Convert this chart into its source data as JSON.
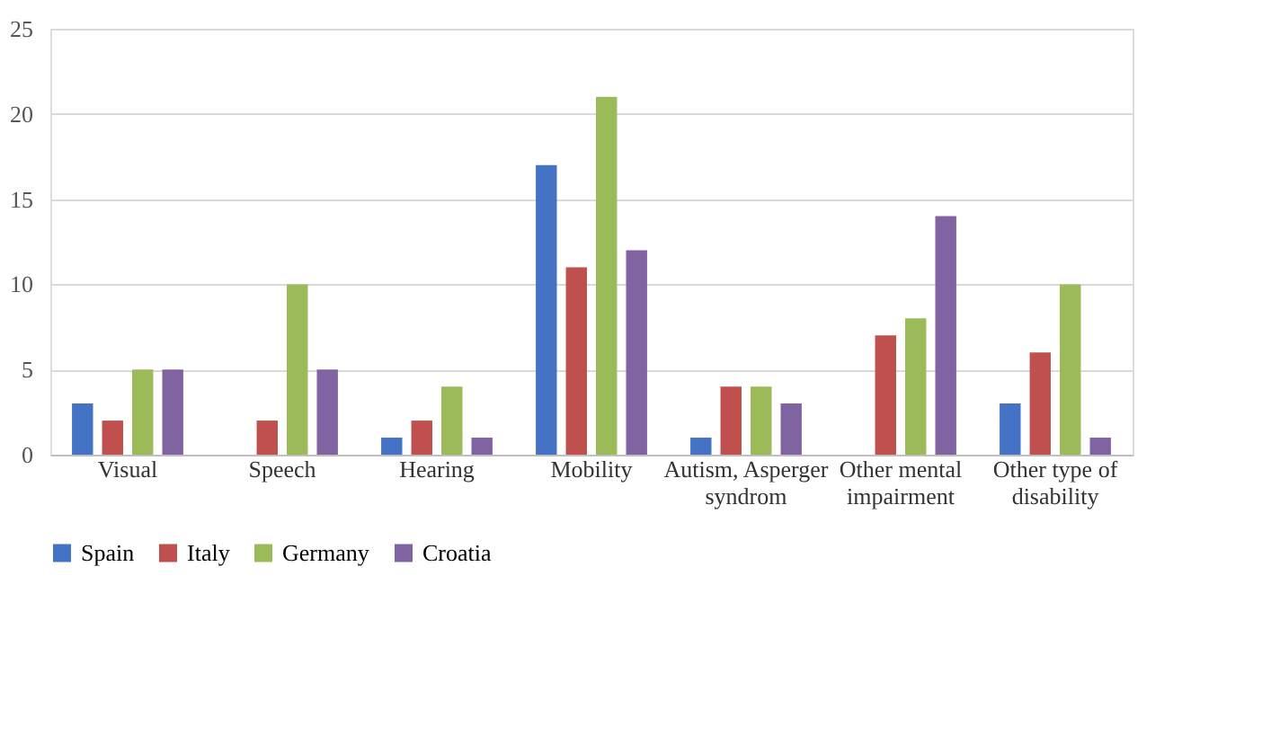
{
  "chart_data": {
    "type": "bar",
    "categories": [
      "Visual",
      "Speech",
      "Hearing",
      "Mobility",
      "Autism, Asperger syndrom",
      "Other mental impairment",
      "Other type of disability"
    ],
    "series": [
      {
        "name": "Spain",
        "color": "#4472c4",
        "values": [
          3,
          0,
          1,
          17,
          1,
          0,
          3
        ]
      },
      {
        "name": "Italy",
        "color": "#c0504d",
        "values": [
          2,
          2,
          2,
          11,
          4,
          7,
          6
        ]
      },
      {
        "name": "Germany",
        "color": "#9bbb59",
        "values": [
          5,
          10,
          4,
          21,
          4,
          8,
          10
        ]
      },
      {
        "name": "Croatia",
        "color": "#8064a2",
        "values": [
          5,
          5,
          1,
          12,
          3,
          14,
          1
        ]
      }
    ],
    "ylim": [
      0,
      25
    ],
    "yticks": [
      0,
      5,
      10,
      15,
      20,
      25
    ],
    "grid": "y",
    "legend": "bottom"
  }
}
